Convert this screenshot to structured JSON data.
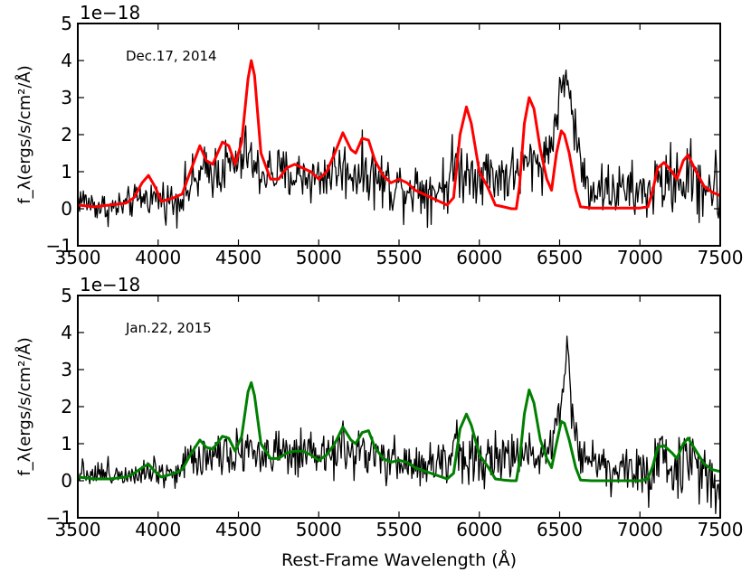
{
  "figure": {
    "xlabel": "Rest-Frame Wavelength (Å)"
  },
  "chart_data": [
    {
      "type": "line",
      "annotation": "Dec.17, 2014",
      "offset_text": "1e−18",
      "ylabel": "f_λ(ergs/s/cm²/Å)",
      "xlim": [
        3500,
        7500
      ],
      "ylim": [
        -1,
        5
      ],
      "xticks": [
        3500,
        4000,
        4500,
        5000,
        5500,
        6000,
        6500,
        7000,
        7500
      ],
      "yticks": [
        -1,
        0,
        1,
        2,
        3,
        4,
        5
      ],
      "series": [
        {
          "color": "#000000",
          "style": "observed-noisy",
          "x": [
            3500,
            3600,
            3700,
            3800,
            3900,
            4000,
            4100,
            4200,
            4300,
            4400,
            4500,
            4560,
            4600,
            4700,
            4800,
            4900,
            5000,
            5100,
            5200,
            5300,
            5400,
            5500,
            5600,
            5700,
            5800,
            5850,
            5900,
            6000,
            6100,
            6200,
            6300,
            6400,
            6450,
            6500,
            6530,
            6550,
            6600,
            6650,
            6700,
            6800,
            6900,
            7000,
            7100,
            7200,
            7300,
            7400,
            7500
          ],
          "y": [
            0.3,
            0.1,
            0.0,
            0.1,
            0.3,
            0.3,
            0.2,
            0.6,
            1.0,
            1.1,
            1.2,
            1.6,
            1.0,
            1.0,
            0.9,
            0.9,
            0.8,
            1.1,
            1.0,
            1.0,
            0.7,
            0.6,
            0.6,
            0.5,
            0.7,
            1.3,
            1.0,
            1.0,
            0.9,
            0.9,
            1.2,
            1.3,
            1.8,
            3.0,
            3.6,
            3.4,
            2.0,
            0.8,
            0.6,
            0.5,
            0.5,
            0.4,
            0.6,
            0.8,
            0.8,
            0.7,
            0.4
          ],
          "noise": [
            0.3,
            0.3,
            0.3,
            0.3,
            0.3,
            0.35,
            0.4,
            0.5,
            0.5,
            0.55,
            0.55,
            0.5,
            0.5,
            0.55,
            0.5,
            0.5,
            0.5,
            0.55,
            0.55,
            0.55,
            0.6,
            0.55,
            0.55,
            0.55,
            0.6,
            0.6,
            0.6,
            0.55,
            0.55,
            0.55,
            0.55,
            0.5,
            0.5,
            0.4,
            0.35,
            0.4,
            0.5,
            0.6,
            0.5,
            0.5,
            0.5,
            0.55,
            0.6,
            0.65,
            0.7,
            0.75,
            0.8
          ]
        },
        {
          "color": "#ff0000",
          "style": "model",
          "x": [
            3500,
            3600,
            3700,
            3800,
            3850,
            3900,
            3940,
            3980,
            4020,
            4060,
            4100,
            4150,
            4200,
            4260,
            4300,
            4340,
            4400,
            4440,
            4480,
            4520,
            4560,
            4580,
            4600,
            4640,
            4700,
            4750,
            4800,
            4850,
            4900,
            4950,
            5000,
            5050,
            5100,
            5150,
            5200,
            5230,
            5270,
            5310,
            5350,
            5400,
            5450,
            5500,
            5550,
            5600,
            5700,
            5800,
            5840,
            5880,
            5920,
            5950,
            6000,
            6050,
            6100,
            6150,
            6200,
            6230,
            6250,
            6280,
            6310,
            6340,
            6380,
            6420,
            6450,
            6480,
            6510,
            6530,
            6560,
            6600,
            6630,
            6700,
            6800,
            6900,
            7000,
            7050,
            7080,
            7110,
            7150,
            7200,
            7230,
            7270,
            7300,
            7350,
            7400,
            7450,
            7500
          ],
          "y": [
            0.1,
            0.05,
            0.1,
            0.15,
            0.3,
            0.7,
            0.9,
            0.6,
            0.2,
            0.25,
            0.3,
            0.4,
            1.0,
            1.7,
            1.3,
            1.2,
            1.8,
            1.7,
            1.2,
            1.8,
            3.5,
            4.0,
            3.6,
            1.5,
            0.8,
            0.8,
            1.1,
            1.2,
            1.1,
            1.0,
            0.8,
            1.0,
            1.5,
            2.05,
            1.6,
            1.5,
            1.9,
            1.85,
            1.3,
            0.9,
            0.7,
            0.8,
            0.7,
            0.5,
            0.3,
            0.1,
            0.3,
            2.0,
            2.75,
            2.3,
            1.0,
            0.6,
            0.1,
            0.05,
            0.0,
            0.0,
            0.6,
            2.3,
            3.0,
            2.7,
            1.6,
            0.8,
            0.5,
            1.5,
            2.1,
            2.0,
            1.5,
            0.5,
            0.05,
            0.02,
            0.02,
            0.02,
            0.02,
            0.05,
            0.5,
            1.1,
            1.25,
            1.0,
            0.8,
            1.3,
            1.45,
            1.0,
            0.6,
            0.45,
            0.35
          ]
        }
      ]
    },
    {
      "type": "line",
      "annotation": "Jan.22, 2015",
      "offset_text": "1e−18",
      "ylabel": "f_λ(ergs/s/cm²/Å)",
      "xlim": [
        3500,
        7500
      ],
      "ylim": [
        -1,
        5
      ],
      "xticks": [
        3500,
        4000,
        4500,
        5000,
        5500,
        6000,
        6500,
        7000,
        7500
      ],
      "yticks": [
        -1,
        0,
        1,
        2,
        3,
        4,
        5
      ],
      "series": [
        {
          "color": "#000000",
          "style": "observed-noisy",
          "x": [
            3500,
            3600,
            3700,
            3800,
            3900,
            4000,
            4100,
            4200,
            4300,
            4400,
            4500,
            4560,
            4600,
            4700,
            4800,
            4900,
            5000,
            5100,
            5200,
            5300,
            5400,
            5500,
            5600,
            5700,
            5800,
            5850,
            5900,
            6000,
            6100,
            6200,
            6300,
            6400,
            6450,
            6500,
            6530,
            6550,
            6570,
            6600,
            6650,
            6700,
            6800,
            6900,
            7000,
            7100,
            7200,
            7300,
            7400,
            7500
          ],
          "y": [
            0.3,
            0.2,
            0.2,
            0.2,
            0.3,
            0.3,
            0.2,
            0.6,
            0.7,
            0.8,
            0.8,
            1.0,
            0.7,
            0.7,
            0.7,
            0.6,
            0.6,
            0.8,
            0.8,
            0.7,
            0.5,
            0.5,
            0.4,
            0.4,
            0.5,
            1.1,
            0.7,
            0.6,
            0.6,
            0.6,
            0.7,
            0.8,
            1.2,
            1.8,
            3.0,
            3.6,
            2.2,
            1.3,
            0.7,
            0.5,
            0.4,
            0.3,
            0.2,
            0.3,
            0.5,
            0.5,
            0.3,
            0.1
          ],
          "noise": [
            0.25,
            0.25,
            0.25,
            0.25,
            0.3,
            0.3,
            0.35,
            0.4,
            0.45,
            0.45,
            0.45,
            0.45,
            0.45,
            0.45,
            0.45,
            0.45,
            0.45,
            0.45,
            0.45,
            0.45,
            0.5,
            0.45,
            0.45,
            0.45,
            0.55,
            0.55,
            0.55,
            0.45,
            0.45,
            0.45,
            0.45,
            0.45,
            0.45,
            0.4,
            0.35,
            0.4,
            0.5,
            0.5,
            0.5,
            0.45,
            0.45,
            0.5,
            0.55,
            0.6,
            0.65,
            0.7,
            0.75,
            0.8
          ]
        },
        {
          "color": "#008000",
          "style": "model",
          "x": [
            3500,
            3600,
            3700,
            3800,
            3850,
            3900,
            3940,
            3980,
            4020,
            4060,
            4100,
            4150,
            4200,
            4260,
            4300,
            4340,
            4400,
            4440,
            4480,
            4520,
            4560,
            4580,
            4600,
            4640,
            4700,
            4750,
            4800,
            4850,
            4900,
            4950,
            5000,
            5050,
            5100,
            5150,
            5200,
            5230,
            5270,
            5310,
            5350,
            5400,
            5450,
            5500,
            5550,
            5600,
            5700,
            5800,
            5840,
            5880,
            5920,
            5950,
            6000,
            6050,
            6100,
            6150,
            6200,
            6230,
            6250,
            6280,
            6310,
            6340,
            6380,
            6420,
            6450,
            6480,
            6510,
            6530,
            6560,
            6600,
            6630,
            6700,
            6800,
            6900,
            7000,
            7050,
            7080,
            7110,
            7150,
            7200,
            7230,
            7270,
            7300,
            7350,
            7400,
            7450,
            7500
          ],
          "y": [
            0.1,
            0.05,
            0.05,
            0.1,
            0.2,
            0.35,
            0.45,
            0.25,
            0.1,
            0.15,
            0.2,
            0.3,
            0.7,
            1.1,
            0.9,
            0.85,
            1.2,
            1.15,
            0.8,
            1.2,
            2.4,
            2.65,
            2.3,
            1.0,
            0.6,
            0.6,
            0.75,
            0.8,
            0.8,
            0.7,
            0.55,
            0.7,
            1.0,
            1.45,
            1.1,
            1.0,
            1.3,
            1.35,
            0.9,
            0.6,
            0.5,
            0.55,
            0.5,
            0.35,
            0.2,
            0.05,
            0.2,
            1.4,
            1.8,
            1.5,
            0.7,
            0.4,
            0.05,
            0.02,
            0.0,
            0.0,
            0.5,
            1.8,
            2.45,
            2.1,
            1.1,
            0.6,
            0.35,
            1.0,
            1.6,
            1.55,
            1.1,
            0.35,
            0.02,
            0.0,
            0.0,
            0.0,
            0.0,
            0.05,
            0.4,
            0.9,
            0.95,
            0.75,
            0.6,
            1.0,
            1.15,
            0.8,
            0.45,
            0.3,
            0.25
          ]
        }
      ]
    }
  ]
}
